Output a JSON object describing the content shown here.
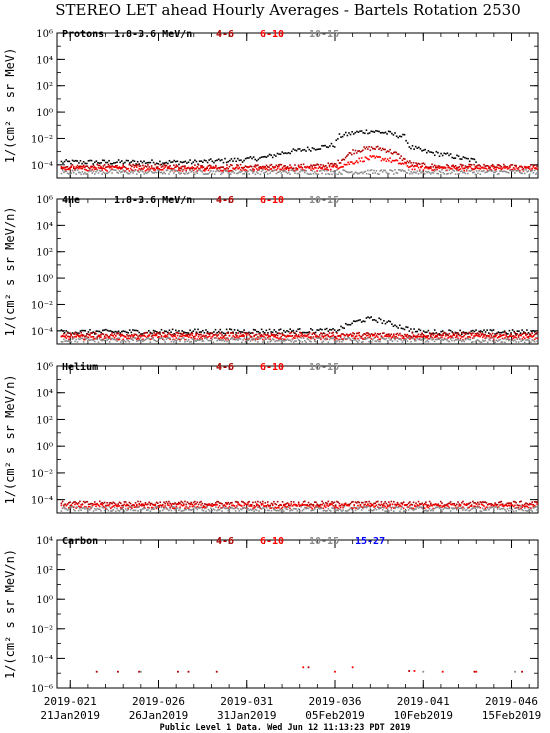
{
  "title": "STEREO LET ahead Hourly Averages - Bartels Rotation 2530",
  "footer": "Public Level 1 Data. Wed Jun 12 11:13:23 PDT 2019",
  "colors": {
    "4-6": "#b00000",
    "6-10": "#ff0000",
    "10-15": "#8c8c8c",
    "15-27": "#0000ff",
    "primary": "#000000"
  },
  "x_axis": {
    "range_doy": [
      20.25,
      47.5
    ],
    "ticks": [
      {
        "doy": 21,
        "line1": "2019-021",
        "line2": "21Jan2019"
      },
      {
        "doy": 26,
        "line1": "2019-026",
        "line2": "26Jan2019"
      },
      {
        "doy": 31,
        "line1": "2019-031",
        "line2": "31Jan2019"
      },
      {
        "doy": 36,
        "line1": "2019-036",
        "line2": "05Feb2019"
      },
      {
        "doy": 41,
        "line1": "2019-041",
        "line2": "10Feb2019"
      },
      {
        "doy": 46,
        "line1": "2019-046",
        "line2": "15Feb2019"
      }
    ]
  },
  "chart_data": [
    {
      "type": "scatter",
      "panel_label": "Protons",
      "primary_channel": "1.8-3.6 MeV/n",
      "legend": [
        "4-6",
        "6-10",
        "10-15"
      ],
      "ylabel": "1/(cm² s sr MeV)",
      "yscale": "log",
      "ylim_exp": [
        -5,
        6
      ],
      "ytick_exps": [
        6,
        4,
        2,
        0,
        -2,
        -4
      ],
      "series": [
        {
          "name": "1.8-3.6 MeV/n",
          "color_key": "primary",
          "x": [
            20.5,
            24,
            28,
            31,
            32,
            32.5,
            33,
            33.5,
            34,
            34.5,
            35,
            35.5,
            36,
            36.2,
            36.5,
            37,
            37.5,
            38,
            38.5,
            39,
            39.5,
            40,
            40.2,
            40.5,
            41,
            41.5,
            42,
            42.5,
            43,
            43.5,
            44
          ],
          "log10_y": [
            -3.8,
            -3.8,
            -3.8,
            -3.6,
            -3.45,
            -3.3,
            -3.1,
            -3.0,
            -2.9,
            -2.8,
            -2.7,
            -2.6,
            -2.5,
            -1.85,
            -1.75,
            -1.6,
            -1.5,
            -1.45,
            -1.5,
            -1.6,
            -1.75,
            -1.9,
            -2.6,
            -2.75,
            -2.95,
            -3.1,
            -3.2,
            -3.3,
            -3.45,
            -3.6,
            -3.7
          ]
        },
        {
          "name": "4-6",
          "color_key": "4-6",
          "x": [
            20.5,
            33,
            35,
            36,
            36.5,
            37,
            37.5,
            38,
            38.5,
            39,
            39.5,
            40,
            40.5,
            42,
            47.5
          ],
          "log10_y": [
            -4.15,
            -4.15,
            -4.1,
            -4.0,
            -3.5,
            -3.0,
            -2.85,
            -2.75,
            -2.75,
            -2.9,
            -3.2,
            -3.7,
            -4.0,
            -4.15,
            -4.15
          ]
        },
        {
          "name": "6-10",
          "color_key": "6-10",
          "x": [
            20.5,
            35,
            36,
            36.5,
            37,
            37.5,
            38,
            38.5,
            39,
            39.5,
            40,
            40.5,
            47.5
          ],
          "log10_y": [
            -4.3,
            -4.3,
            -4.2,
            -4.0,
            -3.8,
            -3.6,
            -3.5,
            -3.5,
            -3.6,
            -3.8,
            -4.0,
            -4.25,
            -4.3
          ]
        },
        {
          "name": "10-15",
          "color_key": "10-15",
          "x": [
            20.5,
            47.5
          ],
          "log10_y": [
            -4.55,
            -4.55
          ]
        }
      ]
    },
    {
      "type": "scatter",
      "panel_label": "4He",
      "primary_channel": "1.8-3.6 MeV/n",
      "legend": [
        "4-6",
        "6-10",
        "10-15"
      ],
      "ylabel": "1/(cm² s sr MeV/n)",
      "yscale": "log",
      "ylim_exp": [
        -5,
        6
      ],
      "ytick_exps": [
        6,
        4,
        2,
        0,
        -2,
        -4
      ],
      "series": [
        {
          "name": "1.8-3.6 MeV/n",
          "color_key": "primary",
          "x": [
            20.5,
            36,
            36.5,
            37,
            37.5,
            38,
            38.5,
            39,
            39.5,
            40,
            40.5,
            41,
            47.5
          ],
          "log10_y": [
            -4.1,
            -4.0,
            -3.7,
            -3.4,
            -3.2,
            -3.1,
            -3.2,
            -3.4,
            -3.6,
            -3.8,
            -4.0,
            -4.1,
            -4.1
          ]
        },
        {
          "name": "4-6",
          "color_key": "4-6",
          "x": [
            20.5,
            47.5
          ],
          "log10_y": [
            -4.3,
            -4.3
          ]
        },
        {
          "name": "6-10",
          "color_key": "6-10",
          "x": [
            20.5,
            47.5
          ],
          "log10_y": [
            -4.5,
            -4.5
          ]
        },
        {
          "name": "10-15",
          "color_key": "10-15",
          "x": [
            20.5,
            47.5
          ],
          "log10_y": [
            -4.7,
            -4.7
          ]
        }
      ]
    },
    {
      "type": "scatter",
      "panel_label": "Helium",
      "primary_channel": "",
      "legend": [
        "4-6",
        "6-10",
        "10-15"
      ],
      "ylabel": "1/(cm² s sr MeV/n)",
      "yscale": "log",
      "ylim_exp": [
        -5,
        6
      ],
      "ytick_exps": [
        6,
        4,
        2,
        0,
        -2,
        -4
      ],
      "series": [
        {
          "name": "4-6",
          "color_key": "4-6",
          "x": [
            20.5,
            47.5
          ],
          "log10_y": [
            -4.3,
            -4.3
          ]
        },
        {
          "name": "6-10",
          "color_key": "6-10",
          "x": [
            20.5,
            47.5
          ],
          "log10_y": [
            -4.5,
            -4.5
          ]
        },
        {
          "name": "10-15",
          "color_key": "10-15",
          "x": [
            20.5,
            47.5
          ],
          "log10_y": [
            -4.7,
            -4.7
          ]
        }
      ]
    },
    {
      "type": "scatter",
      "panel_label": "Carbon",
      "primary_channel": "",
      "legend": [
        "4-6",
        "6-10",
        "10-15",
        "15-27"
      ],
      "ylabel": "1/(cm² s sr MeV/n)",
      "yscale": "log",
      "ylim_exp": [
        -6,
        4
      ],
      "ytick_exps": [
        4,
        2,
        0,
        -2,
        -4,
        -6
      ],
      "series": [
        {
          "name": "4-6",
          "color_key": "4-6",
          "points": [
            [
              22.5,
              -4.9
            ],
            [
              23.7,
              -4.9
            ],
            [
              24.9,
              -4.9
            ],
            [
              27.1,
              -4.9
            ],
            [
              27.7,
              -4.9
            ],
            [
              29.3,
              -4.9
            ],
            [
              34.5,
              -4.6
            ],
            [
              40.2,
              -4.85
            ],
            [
              43.9,
              -4.9
            ],
            [
              46.6,
              -4.9
            ]
          ]
        },
        {
          "name": "6-10",
          "color_key": "6-10",
          "points": [
            [
              34.2,
              -4.6
            ],
            [
              36.0,
              -4.9
            ],
            [
              37.0,
              -4.6
            ],
            [
              40.5,
              -4.85
            ],
            [
              42.1,
              -4.9
            ],
            [
              44.0,
              -4.9
            ]
          ]
        },
        {
          "name": "10-15",
          "color_key": "10-15",
          "points": [
            [
              25.0,
              -4.9
            ],
            [
              41.0,
              -4.9
            ],
            [
              46.2,
              -4.9
            ]
          ]
        },
        {
          "name": "15-27",
          "color_key": "15-27",
          "points": []
        }
      ]
    }
  ]
}
